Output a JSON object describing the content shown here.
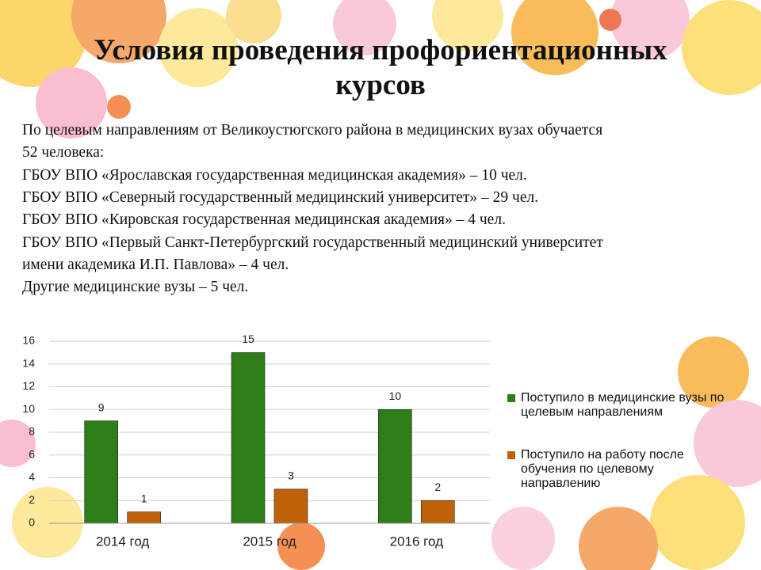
{
  "title_lines": [
    "Условия проведения профориентационных",
    "курсов"
  ],
  "text_lines": [
    "По целевым направлениям от Великоустюгского района в медицинских вузах обучается",
    "52 человека:",
    "ГБОУ ВПО «Ярославская государственная медицинская академия» – 10 чел.",
    "ГБОУ ВПО «Северный государственный медицинский университет» – 29 чел.",
    "ГБОУ ВПО «Кировская государственная медицинская академия» – 4 чел.",
    "ГБОУ ВПО «Первый Санкт-Петербургский государственный медицинский университет",
    "имени академика И.П. Павлова» – 4 чел.",
    "Другие медицинские вузы – 5 чел."
  ],
  "chart_data": {
    "type": "bar",
    "categories": [
      "2014 год",
      "2015 год",
      "2016 год"
    ],
    "series": [
      {
        "name": "Поступило в медицинские вузы по целевым направлениям",
        "color": "#2e7d18",
        "values": [
          9,
          15,
          10
        ]
      },
      {
        "name": "Поступило на работу после обучения по целевому направлению",
        "color": "#c0620a",
        "values": [
          1,
          3,
          2
        ]
      }
    ],
    "ylim": [
      0,
      16
    ],
    "yticks": [
      0,
      2,
      4,
      6,
      8,
      10,
      12,
      14,
      16
    ],
    "grid": true,
    "legend": "right"
  }
}
